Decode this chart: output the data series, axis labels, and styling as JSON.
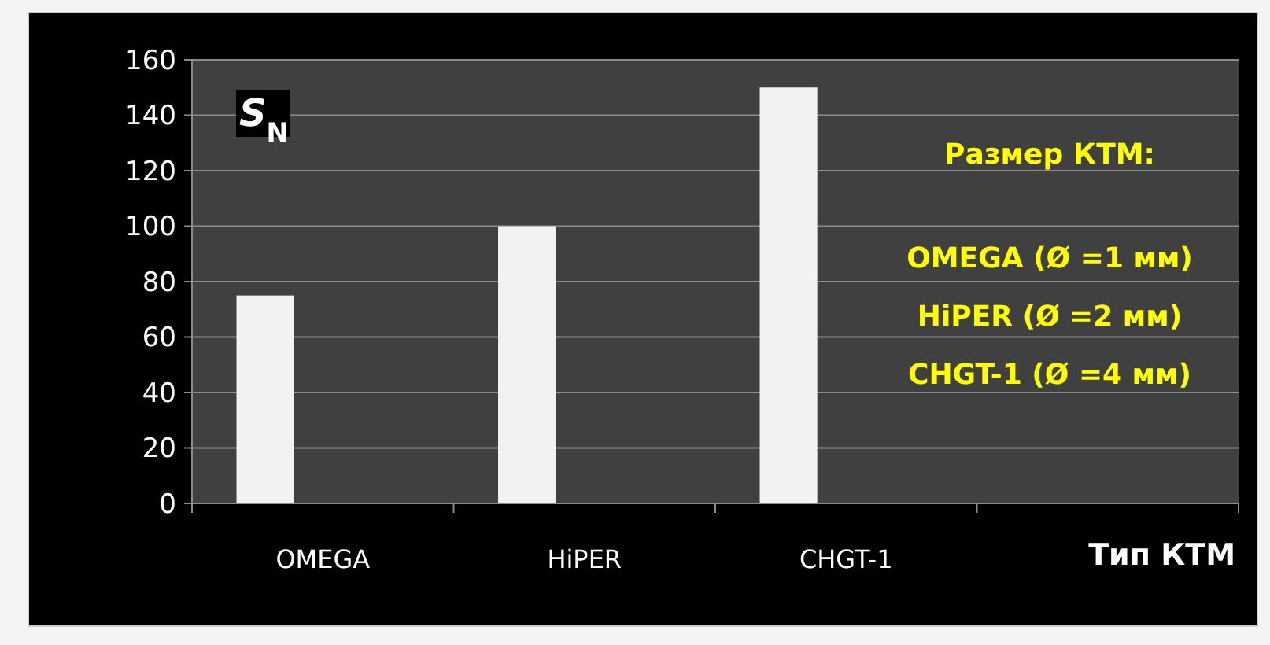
{
  "chart_data": {
    "type": "bar",
    "categories": [
      "OMEGA",
      "HiPER",
      "CHGT-1",
      null
    ],
    "values": [
      75,
      100,
      150,
      null
    ],
    "color": "#f2f2f2",
    "ylabel": "S$_{N}$",
    "xlabel": "Тип КТМ",
    "ylim": [
      0,
      160
    ],
    "yticks": [
      0,
      20,
      40,
      60,
      80,
      100,
      120,
      140,
      160
    ],
    "grid": "y",
    "annotations": [
      "Размер КТМ:",
      "OMEGA (Ø =1 мм)",
      "HiPER (Ø =2 мм)",
      "CHGT-1 (Ø =4 мм)"
    ]
  }
}
